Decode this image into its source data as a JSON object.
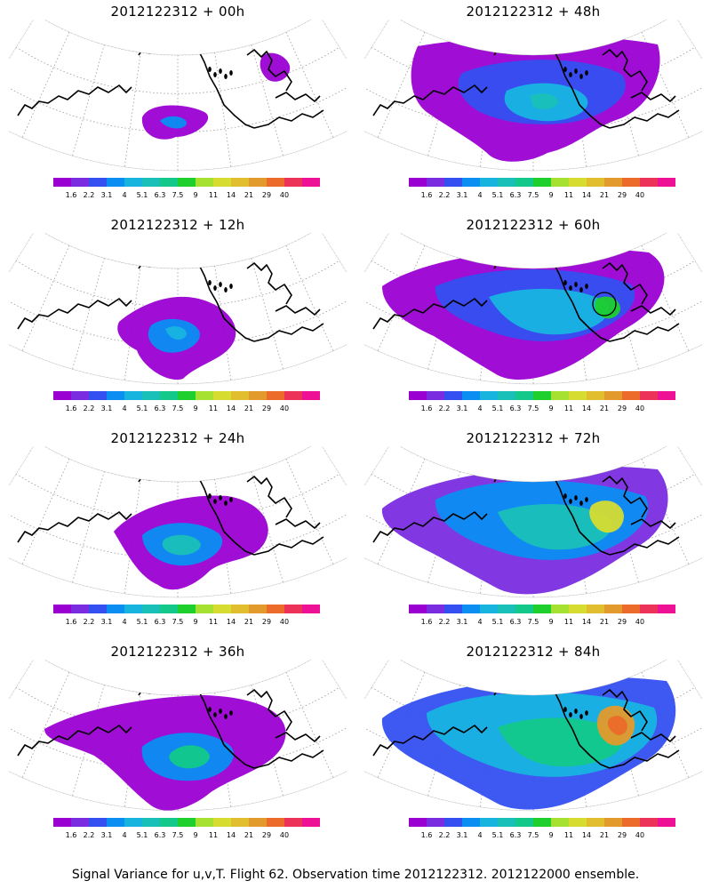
{
  "palette": [
    "#9b00d3",
    "#7a2de0",
    "#3450f0",
    "#0a8ef2",
    "#18b4e0",
    "#19c0b8",
    "#13c98a",
    "#1ecf2e",
    "#a6e030",
    "#d6dc30",
    "#e0be2e",
    "#e39a2c",
    "#ec6a2a",
    "#ec3258",
    "#ee1095"
  ],
  "colorbar_ticks": [
    "1.6",
    "2.2",
    "3.1",
    "4",
    "5.1",
    "6.3",
    "7.5",
    "9",
    "11",
    "14",
    "21",
    "29",
    "40"
  ],
  "panels": [
    {
      "title": "2012122312 + 00h",
      "level": 0
    },
    {
      "title": "2012122312 + 48h",
      "level": 4
    },
    {
      "title": "2012122312 + 12h",
      "level": 1
    },
    {
      "title": "2012122312 + 60h",
      "level": 5
    },
    {
      "title": "2012122312 + 24h",
      "level": 2
    },
    {
      "title": "2012122312 + 72h",
      "level": 6
    },
    {
      "title": "2012122312 + 36h",
      "level": 3
    },
    {
      "title": "2012122312 + 84h",
      "level": 7
    }
  ],
  "footer": "Signal Variance for u,v,T. Flight 62. Observation time 2012122312. 2012122000 ensemble."
}
